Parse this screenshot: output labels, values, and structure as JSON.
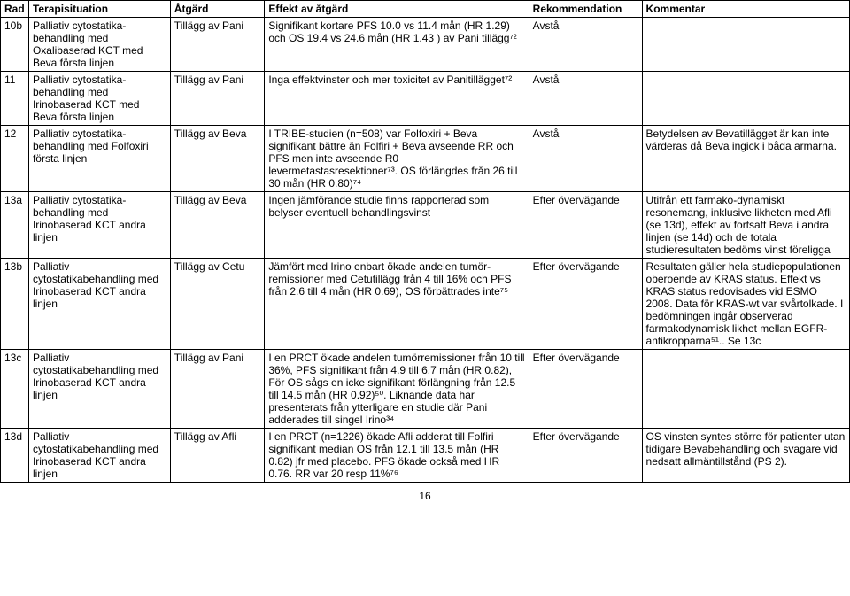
{
  "headers": {
    "rad": "Rad",
    "terapi": "Terapisituation",
    "atgard": "Åtgärd",
    "effekt": "Effekt av åtgärd",
    "rekom": "Rekommendation",
    "komm": "Kommentar"
  },
  "rows": [
    {
      "rad": "10b",
      "terapi": "Palliativ cytostatika-behandling med Oxalibaserad KCT med Beva första linjen",
      "atgard": "Tillägg av Pani",
      "effekt": "Signifikant kortare PFS 10.0 vs 11.4 mån (HR 1.29) och OS 19.4 vs 24.6 mån (HR 1.43 ) av Pani tillägg⁷²",
      "rekom": "Avstå",
      "komm": ""
    },
    {
      "rad": "11",
      "terapi": "Palliativ cytostatika-behandling med Irinobaserad KCT med Beva första linjen",
      "atgard": "Tillägg av Pani",
      "effekt": "Inga effektvinster och mer toxicitet av Panitillägget⁷²",
      "rekom": "Avstå",
      "komm": ""
    },
    {
      "rad": "12",
      "terapi": "Palliativ cytostatika-behandling med Folfoxiri första linjen",
      "atgard": "Tillägg av Beva",
      "effekt": "I TRIBE-studien (n=508) var Folfoxiri + Beva signifikant bättre än Folfiri + Beva avseende RR och PFS men inte avseende R0 levermetastasresektioner⁷³. OS förlängdes från 26 till 30 mån (HR 0.80)⁷⁴",
      "rekom": "Avstå",
      "komm": "Betydelsen av Bevatillägget är kan inte värderas då Beva ingick i båda armarna."
    },
    {
      "rad": "13a",
      "terapi": "Palliativ cytostatika-behandling med Irinobaserad KCT andra linjen",
      "atgard": "Tillägg av Beva",
      "effekt": "Ingen jämförande studie finns rapporterad som belyser eventuell behandlingsvinst",
      "rekom": "Efter övervägande",
      "komm": "Utifrån ett farmako-dynamiskt resonemang, inklusive likheten med Afli (se 13d), effekt av fortsatt Beva i andra linjen (se 14d) och de totala studieresultaten bedöms vinst föreligga"
    },
    {
      "rad": "13b",
      "terapi": "Palliativ cytostatikabehandling med Irinobaserad KCT andra linjen",
      "atgard": "Tillägg av Cetu",
      "effekt": "Jämfört med Irino enbart ökade andelen tumör-remissioner med Cetutillägg från 4 till 16% och PFS från 2.6 till 4 mån (HR 0.69), OS förbättrades inte⁷⁵",
      "rekom": "Efter övervägande",
      "komm": "Resultaten gäller hela studiepopulationen oberoende av KRAS status. Effekt vs KRAS status redovisades vid ESMO 2008. Data för KRAS-wt var svårtolkade. I bedömningen ingår observerad farmakodynamisk likhet mellan EGFR-antikropparna⁵¹.. Se 13c"
    },
    {
      "rad": "13c",
      "terapi": "Palliativ cytostatikabehandling med Irinobaserad KCT andra linjen",
      "atgard": "Tillägg av Pani",
      "effekt": "I en PRCT ökade andelen tumörremissioner från 10 till 36%, PFS signifikant från 4.9 till 6.7 mån (HR 0.82), För OS sågs en icke signifikant förlängning från 12.5 till 14.5 mån (HR 0.92)⁵⁰. Liknande data har presenterats från ytterligare en studie där Pani adderades till singel Irino³⁴",
      "rekom": "Efter övervägande",
      "komm": ""
    },
    {
      "rad": "13d",
      "terapi": "Palliativ cytostatikabehandling med Irinobaserad KCT andra linjen",
      "atgard": "Tillägg av Afli",
      "effekt": "I en PRCT (n=1226) ökade Afli adderat till Folfiri signifikant median OS från 12.1 till 13.5 mån (HR 0.82) jfr med placebo. PFS ökade också med HR 0.76. RR var 20 resp 11%⁷⁶",
      "rekom": "Efter övervägande",
      "komm": "OS vinsten syntes större för patienter utan tidigare Bevabehandling och svagare vid nedsatt allmäntillstånd (PS 2)."
    }
  ],
  "page_number": "16"
}
